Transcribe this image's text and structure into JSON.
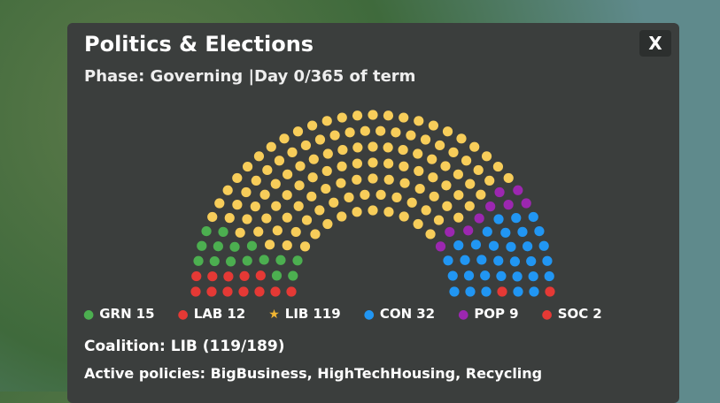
{
  "window": {
    "title": "Politics & Elections",
    "close": "X",
    "phase": "Phase: Governing |Day 0/365 of term",
    "parties": [
      {
        "name": "GRN",
        "seats": 15,
        "color": "#4caf50"
      },
      {
        "name": "LAB",
        "seats": 12,
        "color": "#e53935"
      },
      {
        "name": "LIB",
        "seats": 119,
        "color": "#f7cd5a"
      },
      {
        "name": "CON",
        "seats": 32,
        "color": "#2196f3"
      },
      {
        "name": "POP",
        "seats": 9,
        "color": "#9c27b0"
      },
      {
        "name": "SOC",
        "seats": 2,
        "color": "#e53935"
      }
    ],
    "coalition": "Coalition: LIB  (119/189)",
    "policies": "Active policies: BigBusiness, HighTechHousing, Recycling"
  }
}
